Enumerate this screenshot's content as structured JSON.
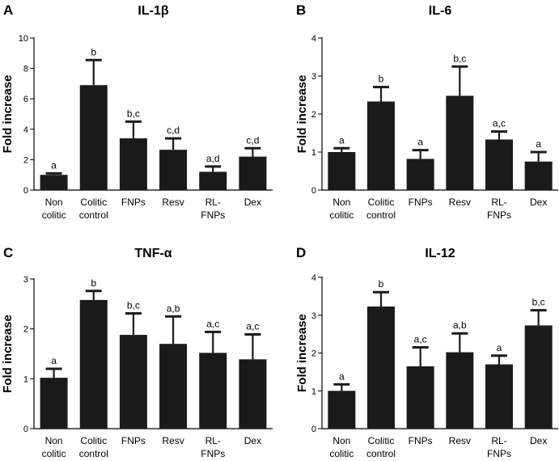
{
  "chart_data": [
    {
      "type": "bar",
      "panel": "A",
      "title": "IL-1β",
      "ylabel": "Fold increase",
      "xlabel": "",
      "categories": [
        [
          "Non",
          "colitic"
        ],
        [
          "Colitic",
          "control"
        ],
        [
          "FNPs"
        ],
        [
          "Resv"
        ],
        [
          "RL-",
          "FNPs"
        ],
        [
          "Dex"
        ]
      ],
      "values": [
        1.0,
        6.9,
        3.4,
        2.65,
        1.2,
        2.2
      ],
      "errors": [
        0.1,
        1.65,
        1.1,
        0.75,
        0.35,
        0.55
      ],
      "significance": [
        "a",
        "b",
        "b,c",
        "c,d",
        "a,d",
        "c,d"
      ],
      "ylim": [
        0,
        10
      ],
      "yticks": [
        0,
        2,
        4,
        6,
        8,
        10
      ],
      "grid": false,
      "bar_color": "#1a1a1a"
    },
    {
      "type": "bar",
      "panel": "B",
      "title": "IL-6",
      "ylabel": "Fold increase",
      "xlabel": "",
      "categories": [
        [
          "Non",
          "colitic"
        ],
        [
          "Colitic",
          "control"
        ],
        [
          "FNPs"
        ],
        [
          "Resv"
        ],
        [
          "RL-",
          "FNPs"
        ],
        [
          "Dex"
        ]
      ],
      "values": [
        1.0,
        2.33,
        0.82,
        2.48,
        1.33,
        0.75
      ],
      "errors": [
        0.1,
        0.38,
        0.23,
        0.77,
        0.21,
        0.25
      ],
      "significance": [
        "a",
        "b",
        "a",
        "b,c",
        "a,c",
        "a"
      ],
      "ylim": [
        0,
        4
      ],
      "yticks": [
        0,
        1,
        2,
        3,
        4
      ],
      "grid": false,
      "bar_color": "#1a1a1a"
    },
    {
      "type": "bar",
      "panel": "C",
      "title": "TNF-α",
      "ylabel": "Fold increase",
      "xlabel": "",
      "categories": [
        [
          "Non",
          "colitic"
        ],
        [
          "Colitic",
          "control"
        ],
        [
          "FNPs"
        ],
        [
          "Resv"
        ],
        [
          "RL-",
          "FNPs"
        ],
        [
          "Dex"
        ]
      ],
      "values": [
        1.02,
        2.58,
        1.88,
        1.7,
        1.52,
        1.39
      ],
      "errors": [
        0.18,
        0.18,
        0.43,
        0.55,
        0.42,
        0.5
      ],
      "significance": [
        "a",
        "b",
        "b,c",
        "a,b",
        "a,c",
        "a,c"
      ],
      "ylim": [
        0,
        3
      ],
      "yticks": [
        0,
        1,
        2,
        3
      ],
      "grid": false,
      "bar_color": "#1a1a1a"
    },
    {
      "type": "bar",
      "panel": "D",
      "title": "IL-12",
      "ylabel": "Fold increase",
      "xlabel": "",
      "categories": [
        [
          "Non",
          "colitic"
        ],
        [
          "Colitic",
          "control"
        ],
        [
          "FNPs"
        ],
        [
          "Resv"
        ],
        [
          "RL-",
          "FNPs"
        ],
        [
          "Dex"
        ]
      ],
      "values": [
        1.0,
        3.23,
        1.65,
        2.02,
        1.7,
        2.73
      ],
      "errors": [
        0.17,
        0.38,
        0.5,
        0.5,
        0.23,
        0.4
      ],
      "significance": [
        "a",
        "b",
        "a,c",
        "a,b",
        "a",
        "b,c"
      ],
      "ylim": [
        0,
        4
      ],
      "yticks": [
        0,
        1,
        2,
        3,
        4
      ],
      "grid": false,
      "bar_color": "#1a1a1a"
    }
  ]
}
